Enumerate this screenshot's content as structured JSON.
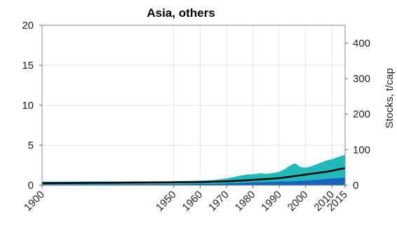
{
  "chart_data": {
    "type": "area",
    "title": "Asia, others",
    "xlabel": "",
    "ylabel_left": "",
    "ylabel_right": "Stocks, t/cap",
    "xlim": [
      1900,
      2015
    ],
    "ylim_left": [
      0,
      20
    ],
    "ylim_right": [
      0,
      450
    ],
    "x_ticks": [
      1900,
      1950,
      1960,
      1970,
      1980,
      1990,
      2000,
      2010,
      2015
    ],
    "y_ticks_left": [
      0,
      5,
      10,
      15,
      20
    ],
    "y_ticks_right": [
      0,
      100,
      200,
      300,
      400
    ],
    "grid": true,
    "x": [
      1900,
      1910,
      1920,
      1930,
      1940,
      1950,
      1960,
      1965,
      1970,
      1973,
      1975,
      1978,
      1980,
      1983,
      1985,
      1988,
      1990,
      1992,
      1994,
      1996,
      1998,
      2000,
      2002,
      2004,
      2006,
      2008,
      2010,
      2012,
      2015
    ],
    "series": [
      {
        "axis": "left",
        "type": "area",
        "color": "#1565c0",
        "values": [
          0.15,
          0.15,
          0.15,
          0.15,
          0.15,
          0.15,
          0.18,
          0.2,
          0.25,
          0.28,
          0.3,
          0.35,
          0.38,
          0.4,
          0.42,
          0.45,
          0.48,
          0.5,
          0.52,
          0.55,
          0.58,
          0.6,
          0.65,
          0.7,
          0.75,
          0.8,
          0.85,
          0.9,
          1.0
        ]
      },
      {
        "axis": "left",
        "type": "area",
        "color": "#20b8b8",
        "values": [
          0.3,
          0.3,
          0.32,
          0.32,
          0.33,
          0.35,
          0.4,
          0.45,
          0.6,
          0.75,
          0.9,
          1.0,
          1.0,
          1.1,
          1.0,
          1.1,
          1.2,
          1.5,
          1.9,
          2.2,
          1.7,
          1.6,
          1.7,
          1.9,
          2.1,
          2.3,
          2.4,
          2.6,
          2.8
        ]
      },
      {
        "axis": "right",
        "type": "line",
        "color": "#000000",
        "values": [
          6,
          6.5,
          7,
          7.5,
          8,
          8.5,
          9,
          10,
          11,
          12,
          13,
          14,
          15,
          16.5,
          17.5,
          19,
          20,
          22,
          24,
          26,
          28,
          30,
          32,
          34,
          36,
          38,
          41,
          44,
          48
        ]
      }
    ]
  }
}
